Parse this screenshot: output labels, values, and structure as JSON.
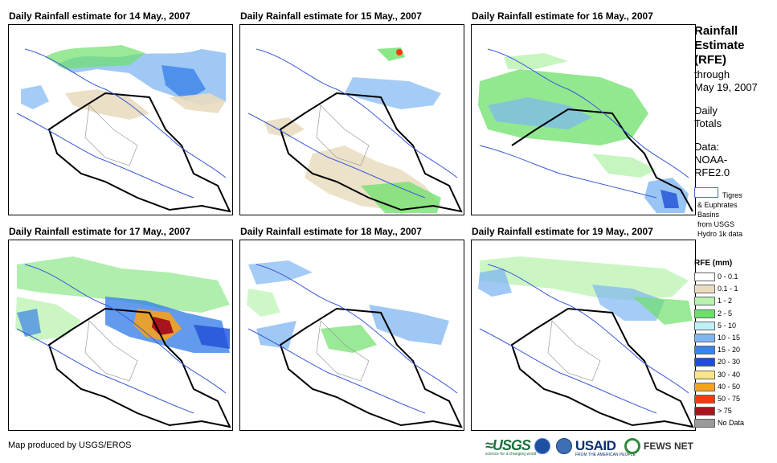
{
  "panels": [
    {
      "title": "Daily Rainfall estimate for 14 May., 2007"
    },
    {
      "title": "Daily Rainfall estimate for 15 May., 2007"
    },
    {
      "title": "Daily Rainfall estimate for 16 May., 2007"
    },
    {
      "title": "Daily Rainfall estimate for 17 May., 2007"
    },
    {
      "title": "Daily Rainfall estimate for 18 May., 2007"
    },
    {
      "title": "Daily Rainfall estimate for 19 May., 2007"
    }
  ],
  "sidebar": {
    "title_lines": [
      "Rainfall",
      "Estimate",
      "(RFE)"
    ],
    "through": "through",
    "date": "May 19, 2007",
    "daily_1": "Daily",
    "daily_2": "Totals",
    "data_1": "Data:",
    "data_2": "NOAA-",
    "data_3": "RFE2.0",
    "basin_1": "Tigres",
    "basin_2": "& Euphrates",
    "basin_3": "Basins",
    "basin_4": "from USGS",
    "basin_5": "Hydro 1k data"
  },
  "legend": {
    "title": "RFE (mm)",
    "items": [
      {
        "label": "0 - 0.1",
        "color": "#ffffff"
      },
      {
        "label": "0.1 - 1",
        "color": "#e9dcc0"
      },
      {
        "label": "1 - 2",
        "color": "#b9f3b0"
      },
      {
        "label": "2 - 5",
        "color": "#6ee06a"
      },
      {
        "label": "5 - 10",
        "color": "#bff0f7"
      },
      {
        "label": "10 - 15",
        "color": "#7fb6f2"
      },
      {
        "label": "15 - 20",
        "color": "#3b82ea"
      },
      {
        "label": "20 - 30",
        "color": "#1f4fd6"
      },
      {
        "label": "30 - 40",
        "color": "#fde48a"
      },
      {
        "label": "40 - 50",
        "color": "#f5a21c"
      },
      {
        "label": "50 - 75",
        "color": "#f03c10"
      },
      {
        "label": "> 75",
        "color": "#a8141e"
      },
      {
        "label": "No Data",
        "color": "#9a9a9a"
      }
    ]
  },
  "footer": {
    "credit": "Map produced by USGS/EROS"
  },
  "logos": {
    "usgs": "≈USGS",
    "usgs_sub": "science for a changing world",
    "usaid": "USAID",
    "usaid_sub": "FROM THE AMERICAN PEOPLE",
    "fews": "FEWS NET"
  }
}
